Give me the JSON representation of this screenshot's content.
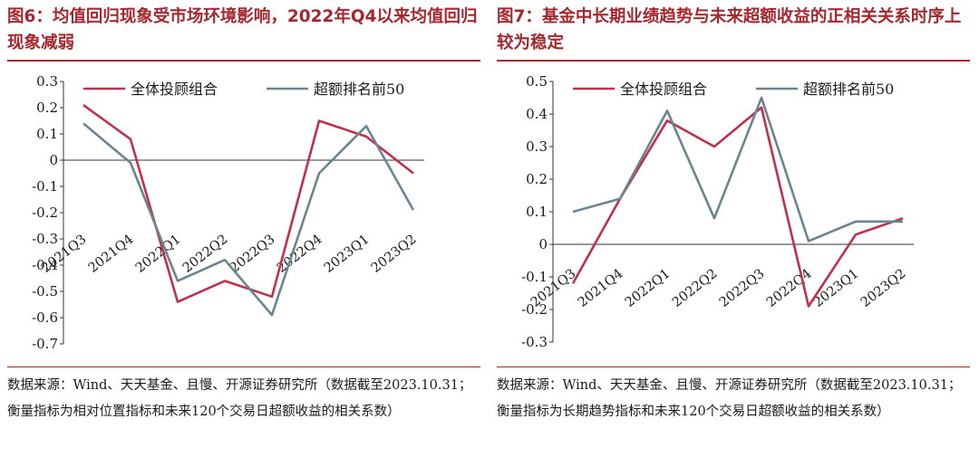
{
  "colors": {
    "accent": "#a5282f",
    "series_all": "#c0304a",
    "series_top50": "#6a8592"
  },
  "icons": {
    "legend_marker": "line-swatch"
  },
  "figures": [
    {
      "title": "图6：均值回归现象受市场环境影响，2022年Q4以来均值回归现象减弱",
      "source": "数据来源：Wind、天天基金、且慢、开源证券研究所（数据截至2023.10.31；衡量指标为相对位置指标和未来120个交易日超额收益的相关系数）"
    },
    {
      "title": "图7：基金中长期业绩趋势与未来超额收益的正相关关系时序上较为稳定",
      "source": "数据来源：Wind、天天基金、且慢、开源证券研究所（数据截至2023.10.31；衡量指标为长期趋势指标和未来120个交易日超额收益的相关系数）"
    }
  ],
  "chart_data": [
    {
      "type": "line",
      "categories": [
        "2021Q3",
        "2021Q4",
        "2022Q1",
        "2022Q2",
        "2022Q3",
        "2022Q4",
        "2023Q1",
        "2023Q2"
      ],
      "series": [
        {
          "name": "全体投顾组合",
          "values": [
            0.21,
            0.08,
            -0.54,
            -0.46,
            -0.52,
            0.15,
            0.09,
            -0.05
          ]
        },
        {
          "name": "超额排名前50",
          "values": [
            0.14,
            -0.01,
            -0.46,
            -0.38,
            -0.59,
            -0.05,
            0.13,
            -0.19
          ]
        }
      ],
      "yticks": [
        "0.3",
        "0.2",
        "0.1",
        "0",
        "-0.1",
        "-0.2",
        "-0.3",
        "-0.4",
        "-0.5",
        "-0.6",
        "-0.7"
      ],
      "ylim": [
        -0.7,
        0.3
      ],
      "legend": "top"
    },
    {
      "type": "line",
      "categories": [
        "2021Q3",
        "2021Q4",
        "2022Q1",
        "2022Q2",
        "2022Q3",
        "2022Q4",
        "2023Q1",
        "2023Q2"
      ],
      "series": [
        {
          "name": "全体投顾组合",
          "values": [
            -0.12,
            0.14,
            0.38,
            0.3,
            0.42,
            -0.19,
            0.03,
            0.08
          ]
        },
        {
          "name": "超额排名前50",
          "values": [
            0.1,
            0.14,
            0.41,
            0.08,
            0.45,
            0.01,
            0.07,
            0.07
          ]
        }
      ],
      "yticks": [
        "0.5",
        "0.4",
        "0.3",
        "0.2",
        "0.1",
        "0",
        "-0.1",
        "-0.2",
        "-0.3"
      ],
      "ylim": [
        -0.3,
        0.5
      ],
      "legend": "top"
    }
  ]
}
